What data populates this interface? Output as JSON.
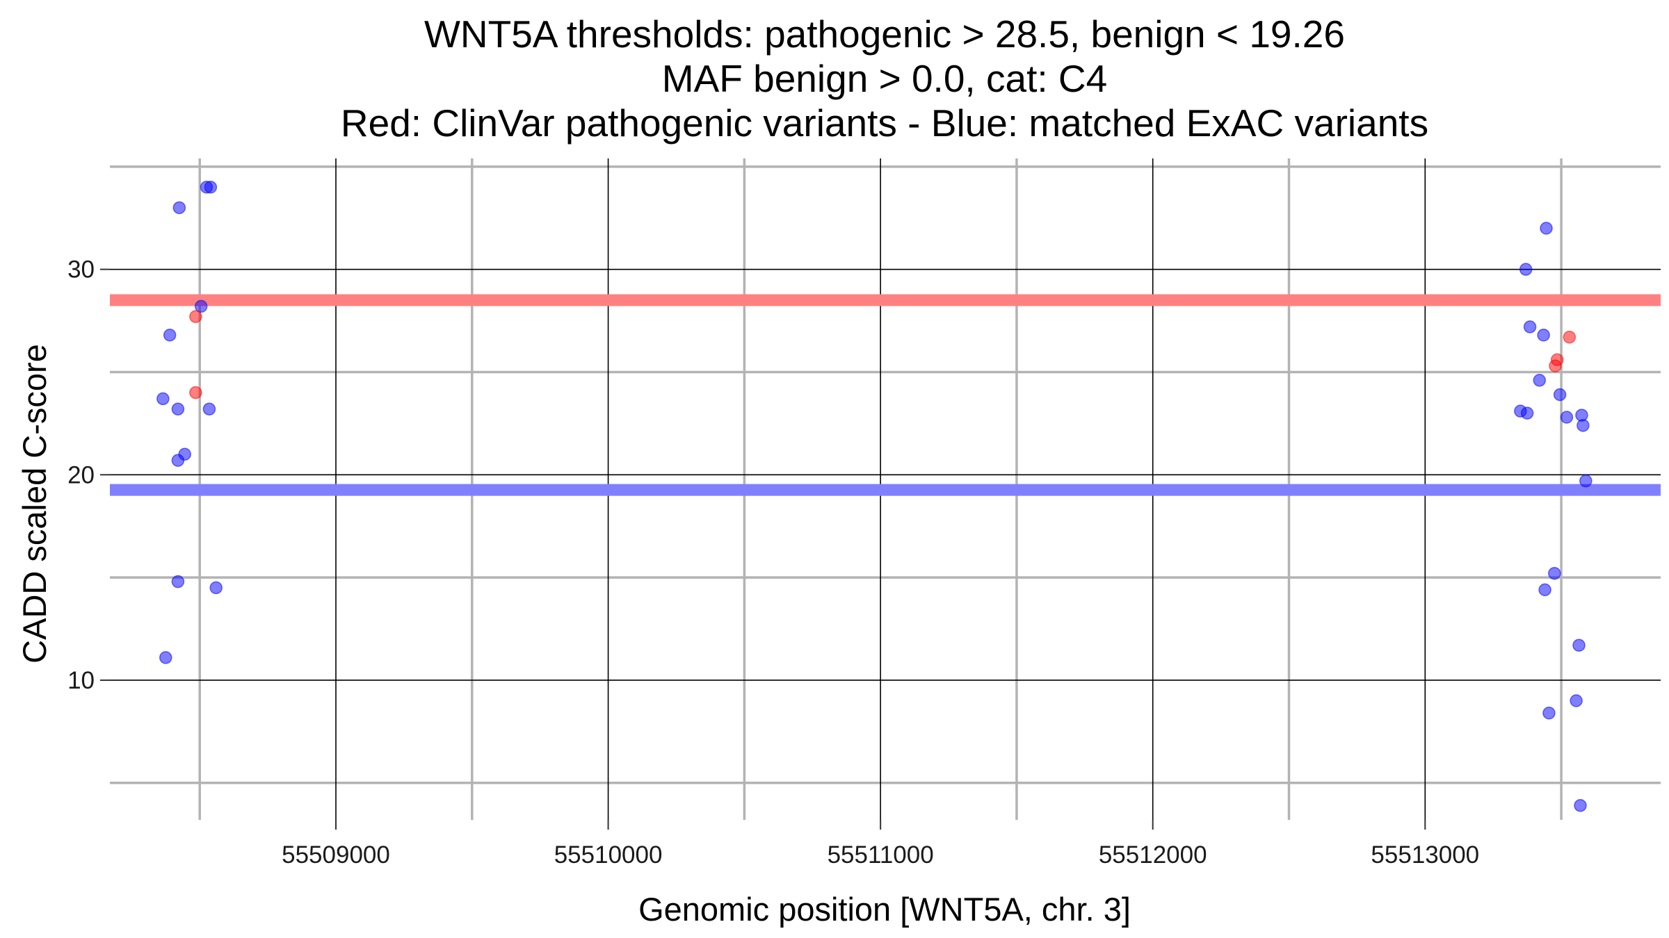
{
  "chart_data": {
    "type": "scatter",
    "title_lines": [
      "WNT5A thresholds: pathogenic > 28.5, benign < 19.26",
      "MAF benign > 0.0, cat: C4",
      "Red: ClinVar pathogenic variants - Blue: matched ExAC variants"
    ],
    "xlabel": "Genomic position [WNT5A, chr. 3]",
    "ylabel": "CADD scaled C-score",
    "xlim": [
      55508170,
      55513865
    ],
    "ylim": [
      3.2,
      35.4
    ],
    "x_ticks": [
      55509000,
      55510000,
      55511000,
      55512000,
      55513000
    ],
    "x_tick_labels": [
      "55509000",
      "55510000",
      "55511000",
      "55512000",
      "55513000"
    ],
    "x_minor_gridlines": [
      55508500,
      55509500,
      55510500,
      55511500,
      55512500,
      55513500
    ],
    "y_ticks": [
      10,
      20,
      30
    ],
    "y_tick_labels": [
      "10",
      "20",
      "30"
    ],
    "y_minor_gridlines": [
      5,
      15,
      25,
      35
    ],
    "grid": true,
    "thresholds": [
      {
        "label": "pathogenic",
        "value": 28.5,
        "color": "#ff8080"
      },
      {
        "label": "benign",
        "value": 19.26,
        "color": "#8080ff"
      }
    ],
    "series": [
      {
        "color": "#0000ff",
        "points": [
          {
            "x": 55508425,
            "y": 33.0
          },
          {
            "x": 55508525,
            "y": 34.0
          },
          {
            "x": 55508540,
            "y": 34.0
          },
          {
            "x": 55508505,
            "y": 28.2
          },
          {
            "x": 55508390,
            "y": 26.8
          },
          {
            "x": 55508365,
            "y": 23.7
          },
          {
            "x": 55508420,
            "y": 23.2
          },
          {
            "x": 55508535,
            "y": 23.2
          },
          {
            "x": 55508445,
            "y": 21.0
          },
          {
            "x": 55508420,
            "y": 20.7
          },
          {
            "x": 55508420,
            "y": 14.8
          },
          {
            "x": 55508560,
            "y": 14.5
          },
          {
            "x": 55508375,
            "y": 11.1
          },
          {
            "x": 55513445,
            "y": 32.0
          },
          {
            "x": 55513370,
            "y": 30.0
          },
          {
            "x": 55513385,
            "y": 27.2
          },
          {
            "x": 55513435,
            "y": 26.8
          },
          {
            "x": 55513420,
            "y": 24.6
          },
          {
            "x": 55513495,
            "y": 23.9
          },
          {
            "x": 55513350,
            "y": 23.1
          },
          {
            "x": 55513375,
            "y": 23.0
          },
          {
            "x": 55513520,
            "y": 22.8
          },
          {
            "x": 55513575,
            "y": 22.9
          },
          {
            "x": 55513580,
            "y": 22.4
          },
          {
            "x": 55513590,
            "y": 19.7
          },
          {
            "x": 55513475,
            "y": 15.2
          },
          {
            "x": 55513440,
            "y": 14.4
          },
          {
            "x": 55513565,
            "y": 11.7
          },
          {
            "x": 55513555,
            "y": 9.0
          },
          {
            "x": 55513455,
            "y": 8.4
          },
          {
            "x": 55513570,
            "y": 3.9
          }
        ]
      },
      {
        "color": "#ff0000",
        "points": [
          {
            "x": 55508485,
            "y": 27.7
          },
          {
            "x": 55508485,
            "y": 24.0
          },
          {
            "x": 55513530,
            "y": 26.7
          },
          {
            "x": 55513485,
            "y": 25.6
          },
          {
            "x": 55513478,
            "y": 25.3
          }
        ]
      }
    ]
  }
}
